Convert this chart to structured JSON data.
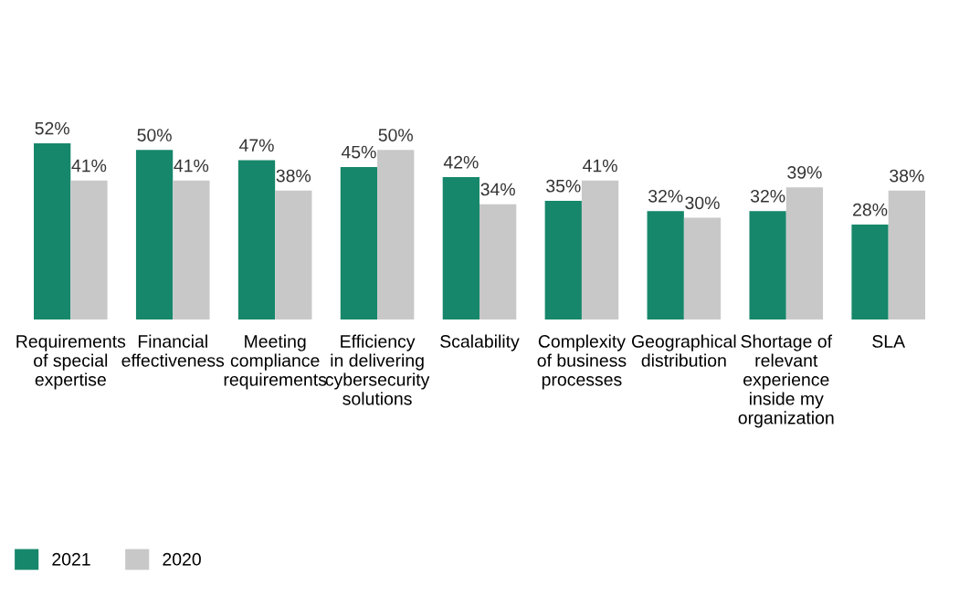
{
  "chart_data": {
    "type": "bar",
    "categories": [
      "Requirements\nof special\nexpertise",
      "Financial\neffectiveness",
      "Meeting\ncompliance\nrequirements",
      "Efficiency\nin delivering\ncybersecurity\nsolutions",
      "Scalability",
      "Complexity\nof business\nprocesses",
      "Geographical\ndistribution",
      "Shortage of\nrelevant\nexperience\ninside my\norganization",
      "SLA"
    ],
    "series": [
      {
        "name": "2021",
        "color": "#16876b",
        "values": [
          52,
          50,
          47,
          45,
          42,
          35,
          32,
          32,
          28
        ],
        "value_labels": [
          "52%",
          "50%",
          "47%",
          "45%",
          "42%",
          "35%",
          "32%",
          "32%",
          "28%"
        ]
      },
      {
        "name": "2020",
        "color": "#c8c8c8",
        "values": [
          41,
          41,
          38,
          50,
          34,
          41,
          30,
          39,
          38
        ],
        "value_labels": [
          "41%",
          "41%",
          "38%",
          "50%",
          "34%",
          "41%",
          "30%",
          "39%",
          "38%"
        ]
      }
    ],
    "legend": "bottom left",
    "grid": false
  }
}
